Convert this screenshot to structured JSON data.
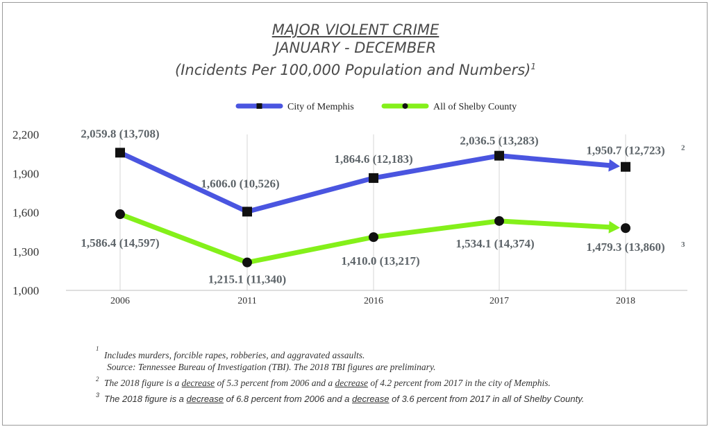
{
  "titles": {
    "line1": "MAJOR VIOLENT CRIME",
    "line2": "JANUARY - DECEMBER",
    "line3": "(Incidents Per 100,000 Population and Numbers)",
    "line3_note": "1"
  },
  "chart_data": {
    "type": "line",
    "categories": [
      "2006",
      "2011",
      "2016",
      "2017",
      "2018"
    ],
    "ylim": [
      1000,
      2200
    ],
    "yticks": [
      "1,000",
      "1,300",
      "1,600",
      "1,900",
      "2,200"
    ],
    "ytick_values": [
      1000,
      1300,
      1600,
      1900,
      2200
    ],
    "grid": "vertical",
    "legend_placement": "top-center",
    "series": [
      {
        "name": "City of Memphis",
        "color": "#4a55e0",
        "marker": "square",
        "values": [
          2059.8,
          1606.0,
          1864.6,
          2036.5,
          1950.7
        ],
        "labels": [
          "2,059.8 (13,708)",
          "1,606.0 (10,526)",
          "1,864.6 (12,183)",
          "2,036.5 (13,283)",
          "1,950.7 (12,723)"
        ],
        "last_label_note": "2"
      },
      {
        "name": "All of Shelby County",
        "color": "#84f01a",
        "marker": "circle",
        "values": [
          1586.4,
          1215.1,
          1410.0,
          1534.1,
          1479.3
        ],
        "labels": [
          "1,586.4 (14,597)",
          "1,215.1 (11,340)",
          "1,410.0 (13,217)",
          "1,534.1 (14,374)",
          "1,479.3 (13,860)"
        ],
        "last_label_note": "3"
      }
    ]
  },
  "footnotes": {
    "n1_mark": "1",
    "n1_text": "Includes murders, forcible rapes, robberies, and aggravated assaults.",
    "n1_source": "Source:  Tennessee Bureau of Investigation (TBI).  The 2018 TBI figures are preliminary.",
    "n2_mark": "2",
    "n2_a": "The 2018 figure is a ",
    "n2_u1": "decrease",
    "n2_b": " of 5.3 percent from 2006 and a ",
    "n2_u2": "decrease",
    "n2_c": " of 4.2 percent from 2017 in the city of Memphis.",
    "n3_mark": "3",
    "n3_a": "The 2018 figure is a ",
    "n3_u1": "decrease",
    "n3_b": " of 6.8 percent from 2006 and a ",
    "n3_u2": "decrease",
    "n3_c": " of 3.6 percent from 2017 in all of Shelby County."
  }
}
